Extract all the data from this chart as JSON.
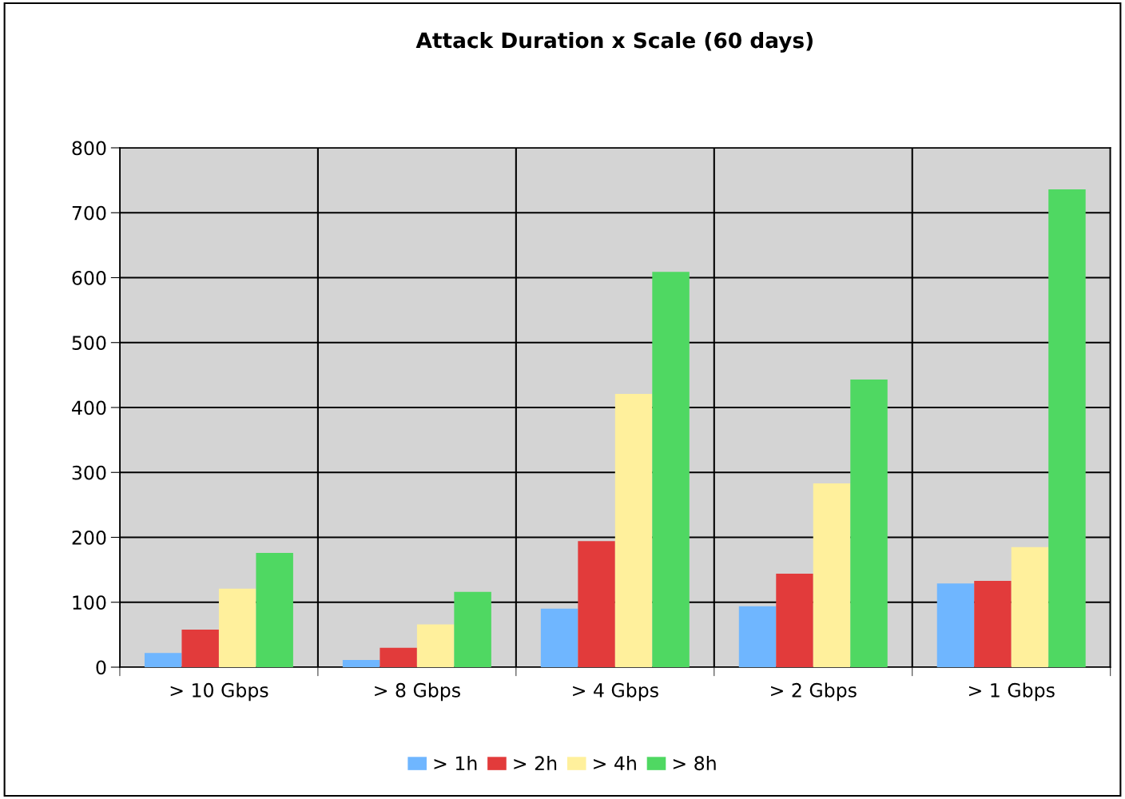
{
  "chart_data": {
    "type": "bar",
    "title": "Attack Duration x Scale (60 days)",
    "categories": [
      "> 10 Gbps",
      "> 8 Gbps",
      "> 4 Gbps",
      "> 2 Gbps",
      "> 1 Gbps"
    ],
    "series": [
      {
        "name": "> 1h",
        "color": "#6fb6ff",
        "values": [
          22,
          11,
          90,
          94,
          129
        ]
      },
      {
        "name": "> 2h",
        "color": "#e23b3b",
        "values": [
          58,
          30,
          194,
          144,
          133
        ]
      },
      {
        "name": "> 4h",
        "color": "#fff09c",
        "values": [
          121,
          66,
          421,
          283,
          185
        ]
      },
      {
        "name": "> 8h",
        "color": "#4fd862",
        "values": [
          176,
          116,
          609,
          443,
          736
        ]
      }
    ],
    "ylim": [
      0,
      800
    ],
    "yticks": [
      0,
      100,
      200,
      300,
      400,
      500,
      600,
      700,
      800
    ],
    "grid": true,
    "legend": "bottom"
  }
}
